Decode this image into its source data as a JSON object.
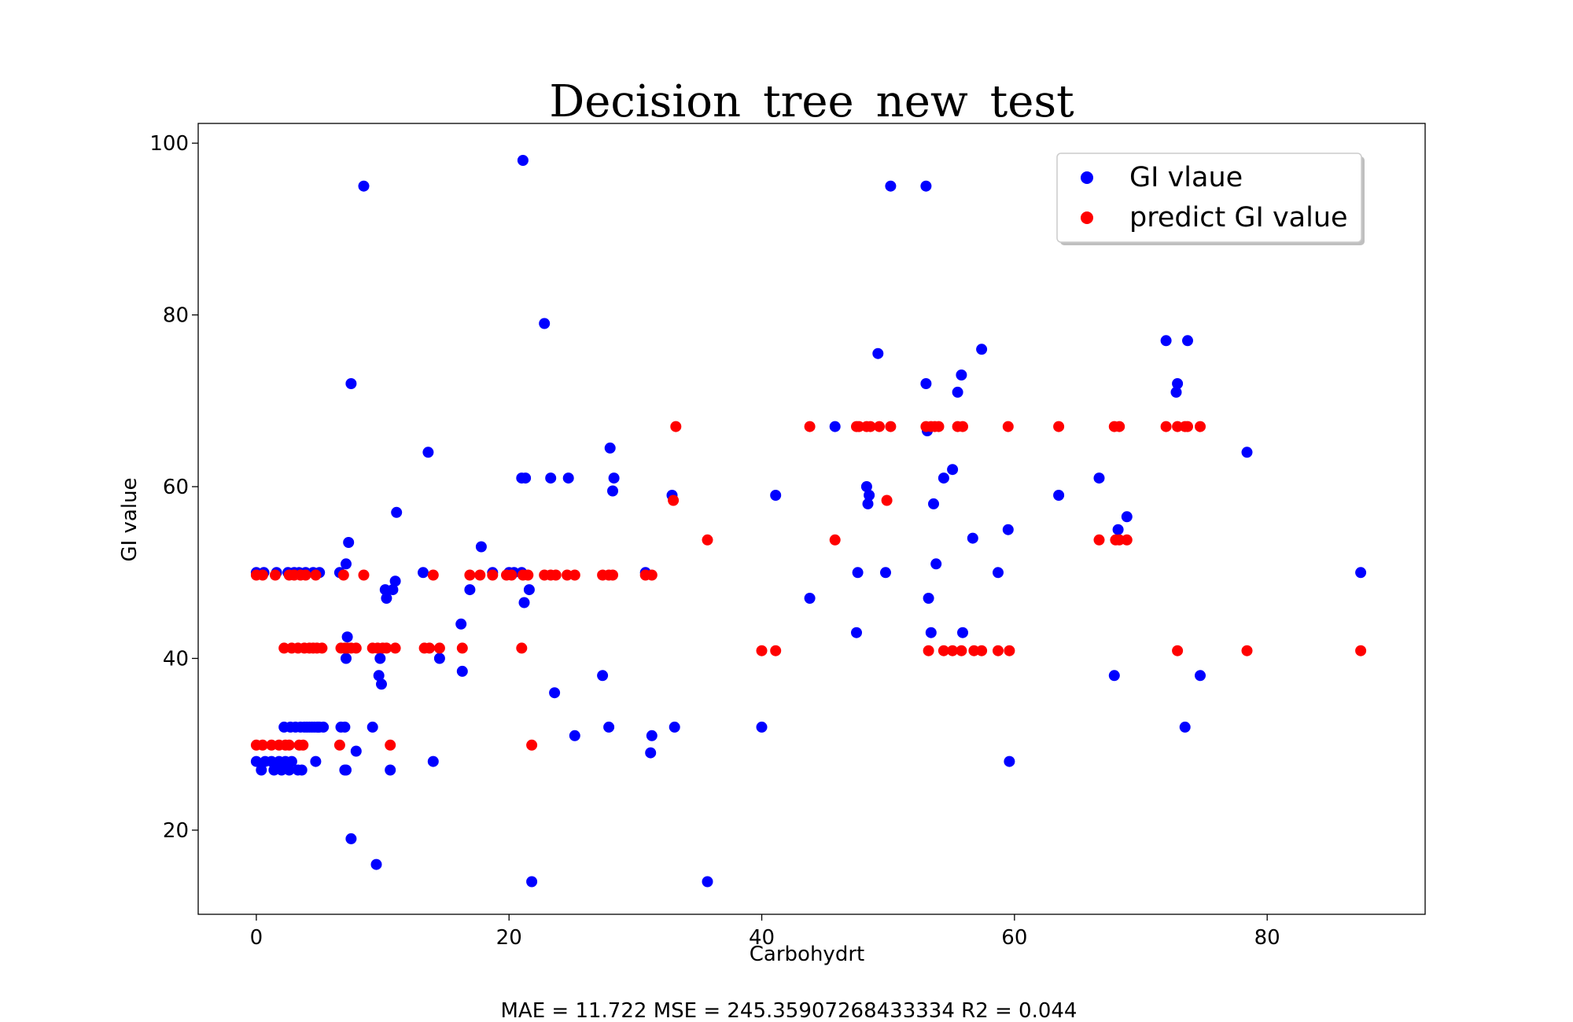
{
  "chart_data": {
    "type": "scatter",
    "title": "Decision_tree_new_test",
    "xlabel": "Carbohydrt",
    "ylabel": "GI value",
    "xlim": [
      -4.6,
      92.5
    ],
    "ylim": [
      10.2,
      102.3
    ],
    "xticks": [
      0,
      20,
      40,
      60,
      80
    ],
    "yticks": [
      20,
      40,
      60,
      80,
      100
    ],
    "grid": false,
    "legend_position": "top-right",
    "metrics_text": "MAE = 11.722 MSE = 245.35907268433334 R2 = 0.044",
    "series": [
      {
        "name": "GI vlaue",
        "color": "#0000ff",
        "points": [
          [
            0,
            50
          ],
          [
            0,
            28
          ],
          [
            0.4,
            27
          ],
          [
            0.6,
            50
          ],
          [
            0.7,
            28
          ],
          [
            1.2,
            28
          ],
          [
            1.4,
            27
          ],
          [
            1.6,
            50
          ],
          [
            1.8,
            28
          ],
          [
            2,
            27
          ],
          [
            2.2,
            32
          ],
          [
            2.3,
            28
          ],
          [
            2.5,
            50
          ],
          [
            2.6,
            27
          ],
          [
            2.7,
            32
          ],
          [
            2.8,
            28
          ],
          [
            3,
            50
          ],
          [
            3.1,
            32
          ],
          [
            3.3,
            27
          ],
          [
            3.4,
            50
          ],
          [
            3.5,
            32
          ],
          [
            3.6,
            27
          ],
          [
            3.8,
            32
          ],
          [
            3.9,
            50
          ],
          [
            4,
            32
          ],
          [
            4.2,
            32
          ],
          [
            4.4,
            32
          ],
          [
            4.5,
            50
          ],
          [
            4.6,
            32
          ],
          [
            4.7,
            28
          ],
          [
            4.8,
            32
          ],
          [
            4.9,
            32
          ],
          [
            5,
            50
          ],
          [
            5,
            32
          ],
          [
            5.3,
            32
          ],
          [
            6.6,
            50
          ],
          [
            6.7,
            32
          ],
          [
            7,
            32
          ],
          [
            7,
            27
          ],
          [
            7.1,
            27
          ],
          [
            7.1,
            40
          ],
          [
            7.1,
            51
          ],
          [
            7.2,
            42.5
          ],
          [
            7.3,
            53.5
          ],
          [
            7.5,
            19
          ],
          [
            7.5,
            72
          ],
          [
            7.9,
            29.2
          ],
          [
            8.5,
            95
          ],
          [
            9.2,
            32
          ],
          [
            9.5,
            16
          ],
          [
            9.7,
            38
          ],
          [
            9.8,
            40
          ],
          [
            9.9,
            37
          ],
          [
            10.2,
            48
          ],
          [
            10.3,
            47
          ],
          [
            10.6,
            27
          ],
          [
            10.8,
            48
          ],
          [
            11,
            49
          ],
          [
            11.1,
            57
          ],
          [
            13.2,
            50
          ],
          [
            13.6,
            64
          ],
          [
            14,
            28
          ],
          [
            14.5,
            40
          ],
          [
            16.2,
            44
          ],
          [
            16.3,
            38.5
          ],
          [
            16.9,
            48
          ],
          [
            17.8,
            53
          ],
          [
            18.7,
            50
          ],
          [
            20,
            50
          ],
          [
            20.4,
            50
          ],
          [
            21,
            50
          ],
          [
            21,
            61
          ],
          [
            21.1,
            98
          ],
          [
            21.2,
            46.5
          ],
          [
            21.3,
            61
          ],
          [
            21.6,
            48
          ],
          [
            21.8,
            14
          ],
          [
            22.8,
            79
          ],
          [
            23.3,
            61
          ],
          [
            23.6,
            36
          ],
          [
            24.7,
            61
          ],
          [
            25.2,
            31
          ],
          [
            27.4,
            38
          ],
          [
            27.9,
            32
          ],
          [
            28,
            64.5
          ],
          [
            28.2,
            59.5
          ],
          [
            28.3,
            61
          ],
          [
            30.8,
            50
          ],
          [
            31.2,
            29
          ],
          [
            31.3,
            31
          ],
          [
            32.9,
            59
          ],
          [
            33.1,
            32
          ],
          [
            35.7,
            14
          ],
          [
            40,
            32
          ],
          [
            41.1,
            59
          ],
          [
            43.8,
            47
          ],
          [
            45.8,
            67
          ],
          [
            47.5,
            43
          ],
          [
            47.6,
            50
          ],
          [
            48.3,
            60
          ],
          [
            48.4,
            58
          ],
          [
            48.5,
            59
          ],
          [
            49.2,
            75.5
          ],
          [
            49.8,
            50
          ],
          [
            50.2,
            95
          ],
          [
            53,
            95
          ],
          [
            53,
            72
          ],
          [
            53.1,
            66.5
          ],
          [
            53.2,
            47
          ],
          [
            53.4,
            43
          ],
          [
            53.6,
            58
          ],
          [
            53.8,
            51
          ],
          [
            54.4,
            61
          ],
          [
            55.1,
            62
          ],
          [
            55.5,
            71
          ],
          [
            55.8,
            73
          ],
          [
            55.9,
            43
          ],
          [
            56.7,
            54
          ],
          [
            57.4,
            76
          ],
          [
            58.7,
            50
          ],
          [
            59.5,
            55
          ],
          [
            59.6,
            28
          ],
          [
            63.5,
            59
          ],
          [
            66.7,
            61
          ],
          [
            67.9,
            38
          ],
          [
            68.2,
            55
          ],
          [
            68.9,
            56.5
          ],
          [
            72,
            77
          ],
          [
            72.8,
            71
          ],
          [
            72.9,
            72
          ],
          [
            73.5,
            32
          ],
          [
            73.7,
            77
          ],
          [
            74.7,
            38
          ],
          [
            78.4,
            64
          ],
          [
            87.4,
            50
          ]
        ]
      },
      {
        "name": "predict GI value",
        "color": "#ff0000",
        "points": [
          [
            0,
            49.7
          ],
          [
            0,
            29.9
          ],
          [
            0.5,
            49.7
          ],
          [
            0.5,
            29.9
          ],
          [
            1.2,
            29.9
          ],
          [
            1.5,
            49.7
          ],
          [
            1.8,
            29.9
          ],
          [
            2.2,
            41.2
          ],
          [
            2.3,
            29.9
          ],
          [
            2.6,
            29.9
          ],
          [
            2.6,
            49.7
          ],
          [
            2.8,
            41.2
          ],
          [
            3,
            49.7
          ],
          [
            3.3,
            41.2
          ],
          [
            3.4,
            29.9
          ],
          [
            3.5,
            49.7
          ],
          [
            3.7,
            29.9
          ],
          [
            3.8,
            41.2
          ],
          [
            3.9,
            49.7
          ],
          [
            4.2,
            41.2
          ],
          [
            4.5,
            41.2
          ],
          [
            4.7,
            49.7
          ],
          [
            4.8,
            41.2
          ],
          [
            5.2,
            41.2
          ],
          [
            6.6,
            29.9
          ],
          [
            6.7,
            41.2
          ],
          [
            6.9,
            49.7
          ],
          [
            7,
            41.2
          ],
          [
            7.2,
            41.2
          ],
          [
            7.5,
            41.2
          ],
          [
            7.9,
            41.2
          ],
          [
            8.5,
            49.7
          ],
          [
            9.2,
            41.2
          ],
          [
            9.6,
            41.2
          ],
          [
            10,
            41.2
          ],
          [
            10.3,
            41.2
          ],
          [
            10.6,
            29.9
          ],
          [
            11,
            41.2
          ],
          [
            13.3,
            41.2
          ],
          [
            13.7,
            41.2
          ],
          [
            14,
            49.7
          ],
          [
            14.5,
            41.2
          ],
          [
            16.3,
            41.2
          ],
          [
            16.9,
            49.7
          ],
          [
            17.7,
            49.7
          ],
          [
            18.7,
            49.7
          ],
          [
            19.8,
            49.7
          ],
          [
            20.2,
            49.7
          ],
          [
            21,
            41.2
          ],
          [
            21.1,
            49.7
          ],
          [
            21.5,
            49.7
          ],
          [
            21.8,
            29.9
          ],
          [
            22.8,
            49.7
          ],
          [
            23.3,
            49.7
          ],
          [
            23.7,
            49.7
          ],
          [
            24.6,
            49.7
          ],
          [
            25.2,
            49.7
          ],
          [
            27.4,
            49.7
          ],
          [
            27.9,
            49.7
          ],
          [
            28.2,
            49.7
          ],
          [
            30.8,
            49.7
          ],
          [
            31.3,
            49.7
          ],
          [
            33,
            58.4
          ],
          [
            33.2,
            67
          ],
          [
            35.7,
            53.8
          ],
          [
            40,
            40.9
          ],
          [
            41.1,
            40.9
          ],
          [
            43.8,
            67
          ],
          [
            45.8,
            53.8
          ],
          [
            47.5,
            67
          ],
          [
            47.7,
            67
          ],
          [
            48.3,
            67
          ],
          [
            48.6,
            67
          ],
          [
            49.3,
            67
          ],
          [
            49.9,
            58.4
          ],
          [
            50.2,
            67
          ],
          [
            53,
            67
          ],
          [
            53.2,
            40.9
          ],
          [
            53.4,
            67
          ],
          [
            53.7,
            67
          ],
          [
            54,
            67
          ],
          [
            54.4,
            40.9
          ],
          [
            55.1,
            40.9
          ],
          [
            55.5,
            67
          ],
          [
            55.8,
            40.9
          ],
          [
            55.9,
            67
          ],
          [
            56.8,
            40.9
          ],
          [
            57.4,
            40.9
          ],
          [
            58.7,
            40.9
          ],
          [
            59.5,
            67
          ],
          [
            59.6,
            40.9
          ],
          [
            63.5,
            67
          ],
          [
            66.7,
            53.8
          ],
          [
            67.9,
            67
          ],
          [
            68,
            53.8
          ],
          [
            68.3,
            67
          ],
          [
            68.3,
            53.8
          ],
          [
            68.9,
            53.8
          ],
          [
            72,
            67
          ],
          [
            72.9,
            67
          ],
          [
            72.9,
            40.9
          ],
          [
            73.5,
            67
          ],
          [
            73.7,
            67
          ],
          [
            74.7,
            67
          ],
          [
            78.4,
            40.9
          ],
          [
            87.4,
            40.9
          ]
        ]
      }
    ]
  }
}
